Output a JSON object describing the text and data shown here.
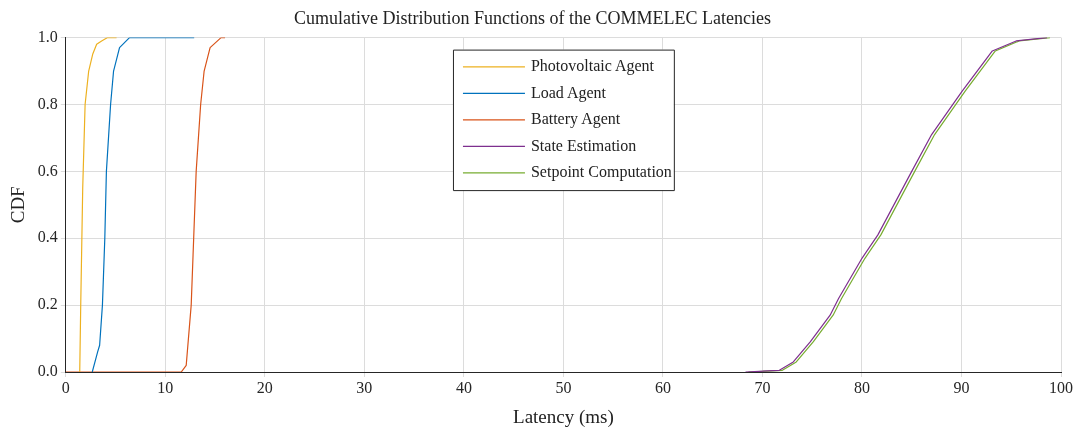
{
  "chart_data": {
    "type": "line",
    "title": "Cumulative Distribution Functions of the COMMELEC Latencies",
    "xlabel": "Latency (ms)",
    "ylabel": "CDF",
    "xlim": [
      0,
      100
    ],
    "xticks": [
      0,
      10,
      20,
      30,
      40,
      50,
      60,
      70,
      80,
      90,
      100
    ],
    "ylim": [
      0,
      1
    ],
    "yticks": [
      {
        "value": 0,
        "label": "0.0"
      },
      {
        "value": 0.2,
        "label": "0.2"
      },
      {
        "value": 0.4,
        "label": "0.4"
      },
      {
        "value": 0.6,
        "label": "0.6"
      },
      {
        "value": 0.8,
        "label": "0.8"
      },
      {
        "value": 1,
        "label": "1.0"
      }
    ],
    "grid": true,
    "legend": "top",
    "marker": "none",
    "line_style": "solid",
    "series": [
      {
        "name": "Photovoltaic Agent",
        "color": "#edb120",
        "x": [
          1.4,
          1.5,
          1.7,
          1.94,
          2.3,
          2.7,
          3.1,
          3.6,
          4.2,
          5.1
        ],
        "values": [
          0,
          0.2,
          0.55,
          0.8,
          0.9,
          0.95,
          0.98,
          0.99,
          1.0,
          1.0
        ]
      },
      {
        "name": "Load Agent",
        "color": "#0072bd",
        "x": [
          2.66,
          3.2,
          3.4,
          3.68,
          3.92,
          4.08,
          4.5,
          4.8,
          5.4,
          6.4,
          12.9
        ],
        "values": [
          0,
          0.06,
          0.08,
          0.2,
          0.4,
          0.6,
          0.8,
          0.9,
          0.97,
          1.0,
          1.0
        ]
      },
      {
        "name": "Battery Agent",
        "color": "#d95319",
        "x": [
          0,
          11.6,
          12.1,
          12.6,
          12.85,
          13.1,
          13.55,
          13.9,
          14.5,
          15.6,
          16.0
        ],
        "values": [
          0,
          0,
          0.02,
          0.2,
          0.4,
          0.6,
          0.8,
          0.9,
          0.97,
          1.0,
          1.0
        ]
      },
      {
        "name": "State Estimation",
        "color": "#7e2f8e",
        "x": [
          68.3,
          71.7,
          73.1,
          74.8,
          76.8,
          77.65,
          80,
          81.6,
          85,
          87,
          90.07,
          93.1,
          95.5,
          98.6
        ],
        "values": [
          0,
          0.005,
          0.03,
          0.09,
          0.17,
          0.22,
          0.34,
          0.41,
          0.6,
          0.71,
          0.84,
          0.96,
          0.99,
          1.0
        ]
      },
      {
        "name": "Setpoint Computation",
        "color": "#77ac30",
        "x": [
          68.6,
          72.0,
          73.4,
          75.1,
          77.1,
          77.95,
          80.3,
          81.9,
          85.3,
          87.3,
          90.37,
          93.4,
          95.8,
          98.9
        ],
        "values": [
          0,
          0.005,
          0.03,
          0.09,
          0.17,
          0.22,
          0.34,
          0.41,
          0.6,
          0.71,
          0.84,
          0.96,
          0.99,
          1.0
        ]
      }
    ]
  }
}
